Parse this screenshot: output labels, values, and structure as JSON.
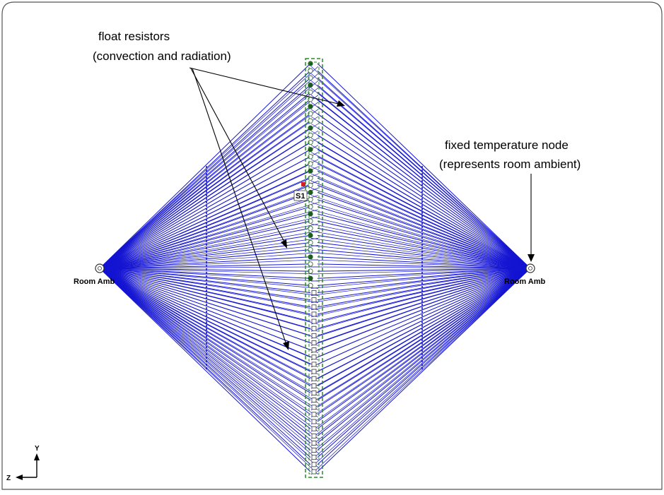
{
  "annotations": {
    "float_resistors_line1": "float resistors",
    "float_resistors_line2": "(convection and radiation)",
    "fixed_node_line1": "fixed temperature node",
    "fixed_node_line2": "(represents room ambient)"
  },
  "nodes": {
    "left_label": "Room Amb",
    "right_label": "Room Amb",
    "source_label": "S1"
  },
  "axes": {
    "vertical": "Y",
    "horizontal": "Z"
  },
  "colors": {
    "resistor": "#1414d2",
    "node_dark": "#1f5c1f",
    "dashed_outline": "#2a8a2a",
    "frame": "#555555"
  }
}
